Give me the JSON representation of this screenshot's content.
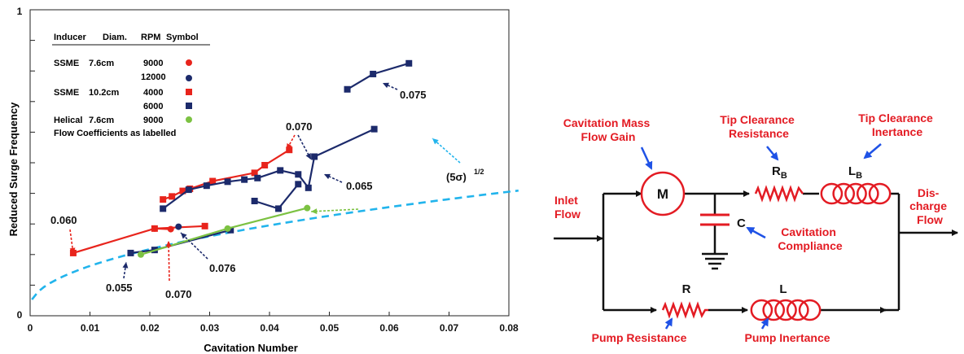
{
  "colors": {
    "red": "#e8241c",
    "navy": "#1c2a6b",
    "green": "#7cc242",
    "cyan": "#22b4ec",
    "blue_arrow": "#1f52e6",
    "circuit_red": "#e31b23",
    "black": "#111111"
  },
  "chart_data": {
    "type": "scatter",
    "xlabel": "Cavitation Number",
    "ylabel": "Reduced Surge Frequency",
    "xlim": [
      0,
      0.08
    ],
    "ylim": [
      0,
      1
    ],
    "xticks": [
      "0",
      "0.01",
      "0.02",
      "0.03",
      "0.04",
      "0.05",
      "0.06",
      "0.07",
      "0.08"
    ],
    "yticks": [
      "0",
      "1"
    ],
    "grid": false,
    "legend": {
      "header": [
        "Inducer",
        "Diam.",
        "RPM",
        "Symbol"
      ],
      "rows": [
        {
          "inducer": "SSME",
          "diam": "7.6cm",
          "rpm": "9000",
          "marker": "circle",
          "color": "red"
        },
        {
          "inducer": "",
          "diam": "",
          "rpm": "12000",
          "marker": "circle",
          "color": "navy"
        },
        {
          "inducer": "SSME",
          "diam": "10.2cm",
          "rpm": "4000",
          "marker": "square",
          "color": "red"
        },
        {
          "inducer": "",
          "diam": "",
          "rpm": "6000",
          "marker": "square",
          "color": "navy"
        },
        {
          "inducer": "Helical",
          "diam": "7.6cm",
          "rpm": "9000",
          "marker": "circle",
          "color": "green"
        }
      ],
      "note": "Flow Coefficients as labelled"
    },
    "series": [
      {
        "marker": "square",
        "color": "red",
        "points": [
          [
            0.0072,
            0.205
          ],
          [
            0.0208,
            0.285
          ],
          [
            0.0292,
            0.293
          ]
        ]
      },
      {
        "marker": "circle",
        "color": "red",
        "points": [
          [
            0.0208,
            0.285
          ],
          [
            0.0235,
            0.283
          ]
        ]
      },
      {
        "marker": "circle",
        "color": "navy",
        "points": [
          [
            0.0248,
            0.291
          ]
        ]
      },
      {
        "marker": "square",
        "color": "red",
        "points": [
          [
            0.0222,
            0.38
          ],
          [
            0.0237,
            0.39
          ],
          [
            0.0255,
            0.408
          ],
          [
            0.0267,
            0.415
          ],
          [
            0.0305,
            0.44
          ],
          [
            0.0375,
            0.467
          ],
          [
            0.0392,
            0.492
          ],
          [
            0.0433,
            0.542
          ]
        ]
      },
      {
        "marker": "square",
        "color": "navy",
        "points": [
          [
            0.0222,
            0.35
          ],
          [
            0.0265,
            0.412
          ],
          [
            0.0295,
            0.425
          ],
          [
            0.033,
            0.438
          ],
          [
            0.0358,
            0.445
          ],
          [
            0.038,
            0.45
          ],
          [
            0.0418,
            0.475
          ],
          [
            0.0448,
            0.462
          ],
          [
            0.0465,
            0.418
          ],
          [
            0.0475,
            0.52
          ],
          [
            0.0575,
            0.61
          ]
        ]
      },
      {
        "marker": "square",
        "color": "navy",
        "points": [
          [
            0.0168,
            0.205
          ],
          [
            0.0208,
            0.215
          ],
          [
            0.0335,
            0.28
          ]
        ]
      },
      {
        "marker": "circle",
        "color": "green",
        "points": [
          [
            0.0185,
            0.2
          ],
          [
            0.033,
            0.285
          ],
          [
            0.0463,
            0.352
          ]
        ]
      },
      {
        "marker": "square",
        "color": "navy",
        "points": [
          [
            0.0375,
            0.375
          ],
          [
            0.0415,
            0.35
          ],
          [
            0.0448,
            0.43
          ]
        ]
      },
      {
        "marker": "square",
        "color": "navy",
        "points": [
          [
            0.053,
            0.74
          ],
          [
            0.0573,
            0.79
          ],
          [
            0.0633,
            0.825
          ]
        ]
      },
      {
        "marker": "none",
        "color": "cyan",
        "dashed": true,
        "curve": "sqrt5sigma",
        "label": "(5σ)^1/2"
      }
    ],
    "annotations": [
      {
        "text": "0.060"
      },
      {
        "text": "0.055"
      },
      {
        "text": "0.070"
      },
      {
        "text": "0.076"
      },
      {
        "text": "0.070"
      },
      {
        "text": "0.065"
      },
      {
        "text": "0.075"
      },
      {
        "text": "(5σ)",
        "sup": "1/2"
      }
    ]
  },
  "diagram": {
    "m_label": "M",
    "c_label": "C",
    "r_label": "R",
    "l_label": "L",
    "rb_label": "R",
    "rb_sub": "B",
    "lb_label": "L",
    "lb_sub": "B",
    "inlet_flow": [
      "Inlet",
      "Flow"
    ],
    "discharge_flow": [
      "Dis-",
      "charge",
      "Flow"
    ],
    "cavitation_mass_flow_gain": [
      "Cavitation Mass",
      "Flow Gain"
    ],
    "tip_clearance_resistance": [
      "Tip Clearance",
      "Resistance"
    ],
    "tip_clearance_inertance": [
      "Tip Clearance",
      "Inertance"
    ],
    "cavitation_compliance": [
      "Cavitation",
      "Compliance"
    ],
    "pump_resistance": "Pump Resistance",
    "pump_inertance": "Pump Inertance"
  }
}
